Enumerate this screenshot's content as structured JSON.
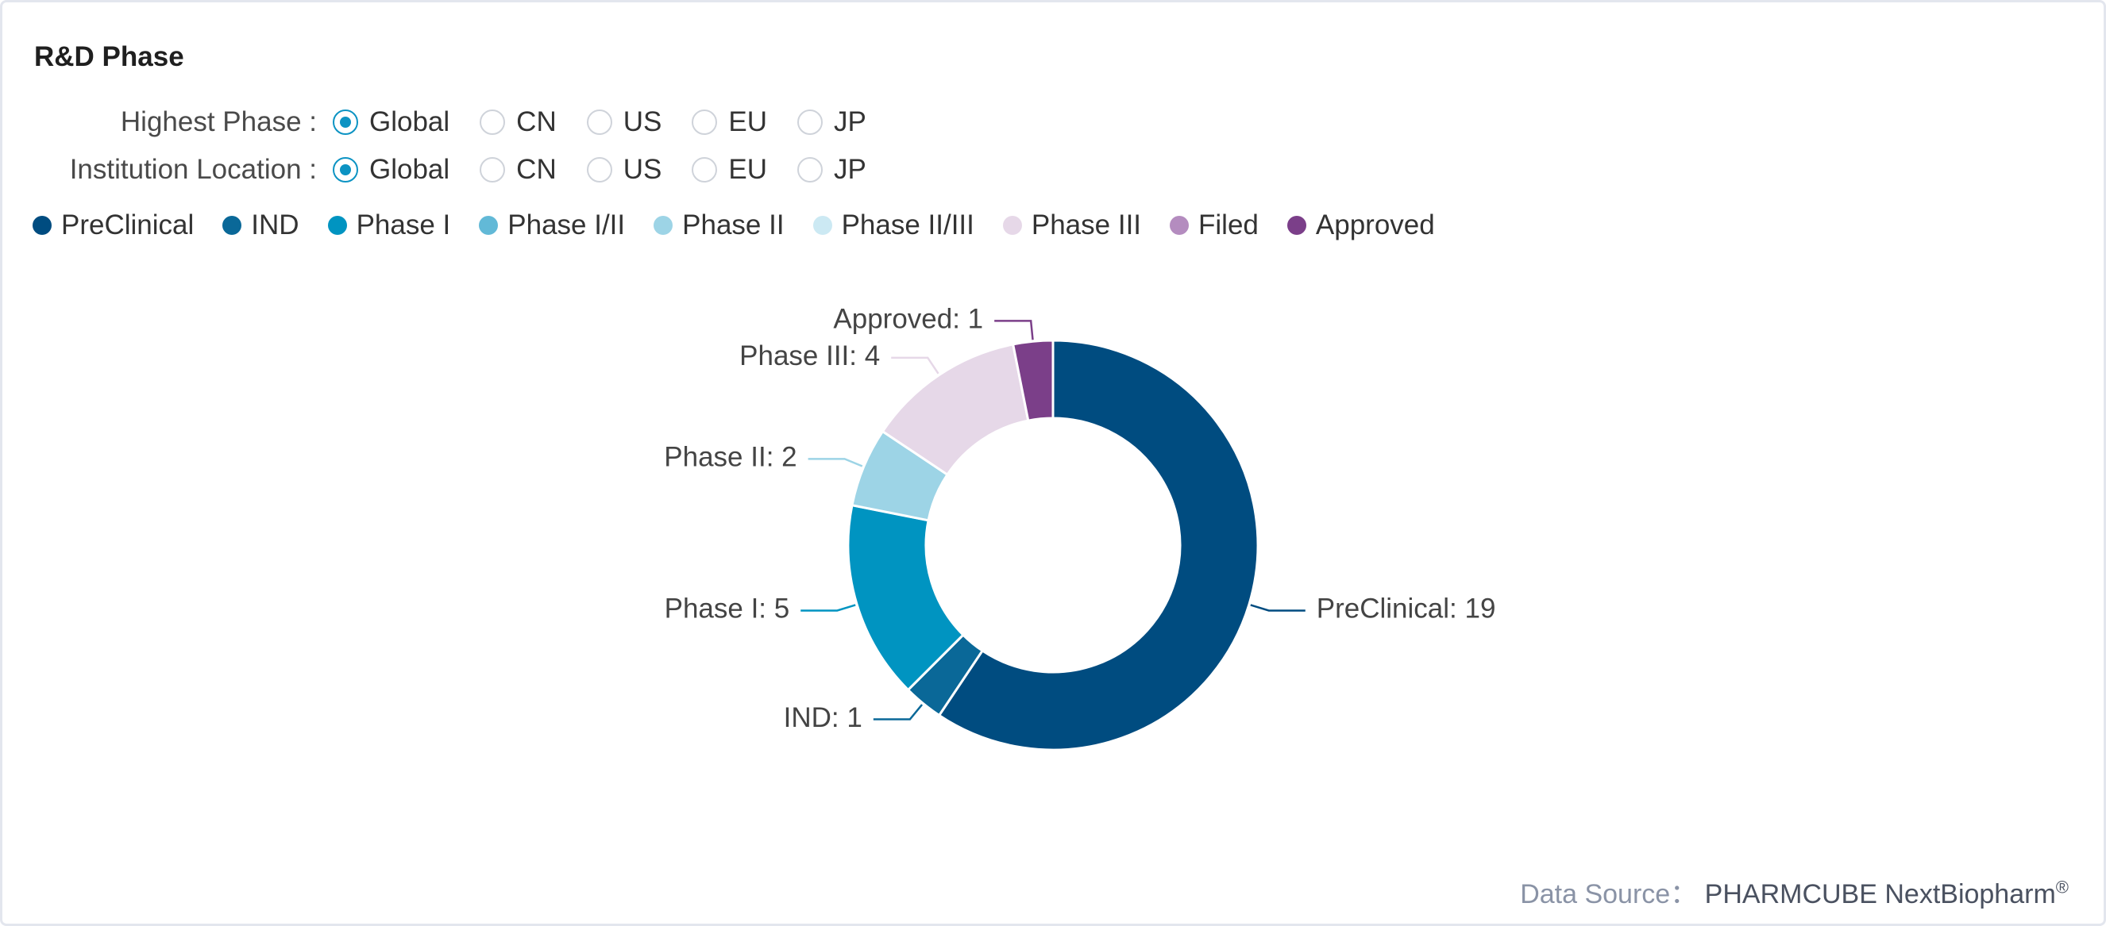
{
  "title": "R&D Phase",
  "filters": {
    "highest_phase": {
      "label": "Highest Phase :",
      "options": [
        "Global",
        "CN",
        "US",
        "EU",
        "JP"
      ],
      "selected": "Global"
    },
    "institution_location": {
      "label": "Institution Location :",
      "options": [
        "Global",
        "CN",
        "US",
        "EU",
        "JP"
      ],
      "selected": "Global"
    }
  },
  "legend": [
    {
      "label": "PreClinical",
      "color": "#004c80"
    },
    {
      "label": "IND",
      "color": "#0a6898"
    },
    {
      "label": "Phase I",
      "color": "#0094c1"
    },
    {
      "label": "Phase I/II",
      "color": "#62b9d7"
    },
    {
      "label": "Phase II",
      "color": "#9dd4e6"
    },
    {
      "label": "Phase II/III",
      "color": "#cce9f3"
    },
    {
      "label": "Phase III",
      "color": "#e6d8e8"
    },
    {
      "label": "Filed",
      "color": "#b48cbf"
    },
    {
      "label": "Approved",
      "color": "#7b3f89"
    }
  ],
  "chart_data": {
    "type": "pie",
    "donut": true,
    "title": "R&D Phase",
    "start": "12 o'clock",
    "direction": "clockwise",
    "slices": [
      {
        "label": "PreClinical",
        "value": 19,
        "color": "#004c80",
        "text": "PreClinical: 19"
      },
      {
        "label": "IND",
        "value": 1,
        "color": "#0a6898",
        "text": "IND: 1"
      },
      {
        "label": "Phase I",
        "value": 5,
        "color": "#0094c1",
        "text": "Phase I: 5"
      },
      {
        "label": "Phase II",
        "value": 2,
        "color": "#9dd4e6",
        "text": "Phase II: 2"
      },
      {
        "label": "Phase III",
        "value": 4,
        "color": "#e6d8e8",
        "text": "Phase III: 4"
      },
      {
        "label": "Approved",
        "value": 1,
        "color": "#7b3f89",
        "text": "Approved: 1"
      }
    ]
  },
  "source": {
    "label": "Data Source：",
    "value": "PHARMCUBE NextBiopharm",
    "mark": "®"
  }
}
